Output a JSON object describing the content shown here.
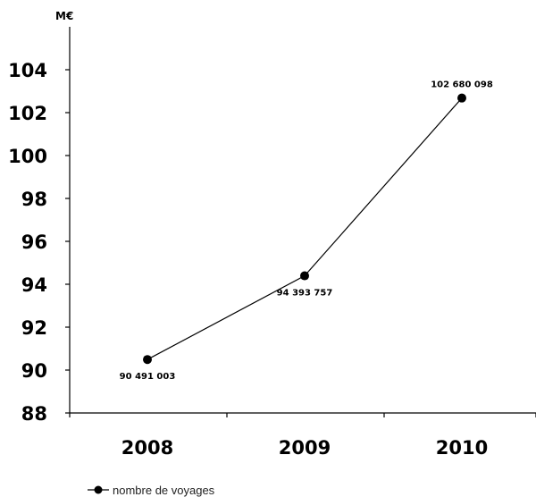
{
  "chart_data": {
    "type": "line",
    "ylabel": "M€",
    "ylim": [
      88,
      106
    ],
    "yticks": [
      "88",
      "90",
      "92",
      "94",
      "96",
      "98",
      "100",
      "102",
      "104"
    ],
    "categories": [
      "2008",
      "2009",
      "2010"
    ],
    "series": [
      {
        "name": "nombre de voyages",
        "values": [
          90.491003,
          94.393757,
          102.680098
        ],
        "labels": [
          "90 491 003",
          "94 393 757",
          "102 680 098"
        ],
        "color": "#000000"
      }
    ],
    "grid": false,
    "legend": "bottom-left"
  }
}
